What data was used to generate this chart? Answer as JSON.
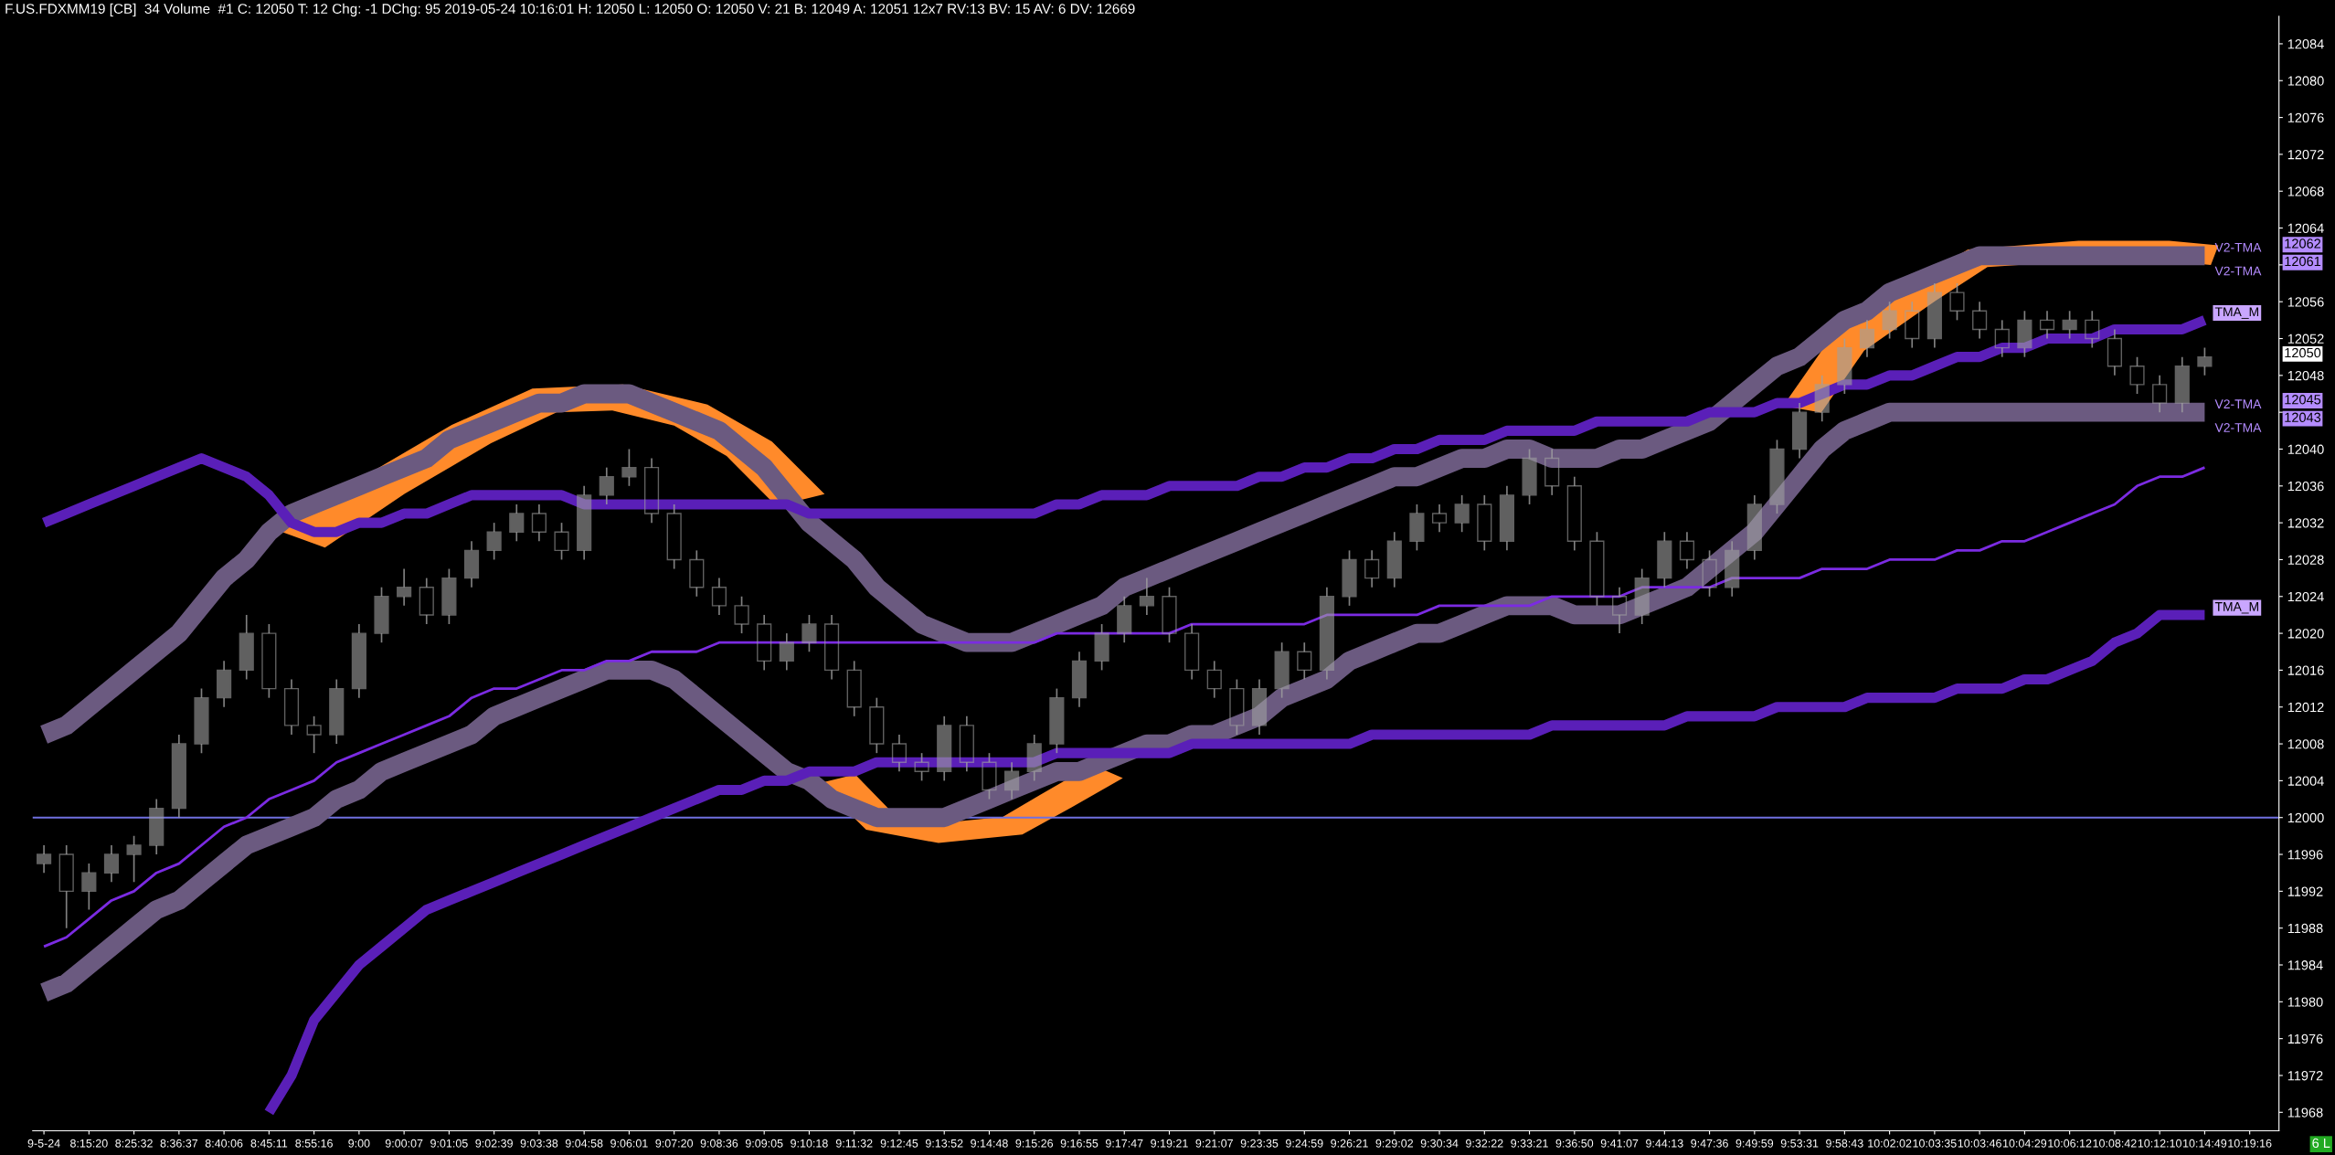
{
  "chart_data": {
    "type": "candlestick",
    "title": "F.US.FDXMM19 [CB]  34 Volume  #1 C: 12050 T: 12 Chg: -1 DChg: 95 2019-05-24 10:16:01 H: 12050 L: 12050 O: 12050 V: 21 B: 12049 A: 12051 12x7 RV:13 BV: 15 AV: 6 DV: 12669",
    "color": "#a0a0a0",
    "categories": [
      "9-5-24",
      null,
      "8:15:20",
      null,
      "8:25:32",
      null,
      "8:36:37",
      null,
      "8:40:06",
      null,
      "8:45:11",
      null,
      "8:55:16",
      null,
      "9:00",
      null,
      "9:00:07",
      null,
      "9:01:05",
      null,
      "9:02:39",
      null,
      "9:03:38",
      null,
      "9:04:58",
      null,
      "9:06:01",
      null,
      "9:07:20",
      null,
      "9:08:36",
      null,
      "9:09:05",
      null,
      "9:10:18",
      null,
      "9:11:32",
      null,
      "9:12:45",
      null,
      "9:13:52",
      null,
      "9:14:48",
      null,
      "9:15:26",
      null,
      "9:16:55",
      null,
      "9:17:47",
      null,
      "9:19:21",
      null,
      "9:21:07",
      null,
      "9:23:35",
      null,
      "9:24:59",
      null,
      "9:26:21",
      null,
      "9:29:02",
      null,
      "9:30:34",
      null,
      "9:32:22",
      null,
      "9:33:21",
      null,
      "9:36:50",
      null,
      "9:41:07",
      null,
      "9:44:13",
      null,
      "9:47:36",
      null,
      "9:49:59",
      null,
      "9:53:31",
      null,
      "9:58:43",
      null,
      "10:02:02",
      null,
      "10:03:35",
      null,
      "10:03:46",
      null,
      "10:04:29",
      null,
      "10:06:12",
      null,
      "10:08:42",
      null,
      "10:12:10",
      null,
      "10:14:49",
      null,
      "10:19:16"
    ],
    "ohlc": [
      [
        11995,
        11997,
        11994,
        11996
      ],
      [
        11996,
        11997,
        11988,
        11992
      ],
      [
        11992,
        11995,
        11990,
        11994
      ],
      [
        11994,
        11997,
        11993,
        11996
      ],
      [
        11996,
        11998,
        11993,
        11997
      ],
      [
        11997,
        12002,
        11996,
        12001
      ],
      [
        12001,
        12009,
        12000,
        12008
      ],
      [
        12008,
        12014,
        12007,
        12013
      ],
      [
        12013,
        12017,
        12012,
        12016
      ],
      [
        12016,
        12022,
        12015,
        12020
      ],
      [
        12020,
        12021,
        12013,
        12014
      ],
      [
        12014,
        12015,
        12009,
        12010
      ],
      [
        12010,
        12011,
        12007,
        12009
      ],
      [
        12009,
        12015,
        12008,
        12014
      ],
      [
        12014,
        12021,
        12013,
        12020
      ],
      [
        12020,
        12025,
        12019,
        12024
      ],
      [
        12024,
        12027,
        12023,
        12025
      ],
      [
        12025,
        12026,
        12021,
        12022
      ],
      [
        12022,
        12027,
        12021,
        12026
      ],
      [
        12026,
        12030,
        12025,
        12029
      ],
      [
        12029,
        12032,
        12028,
        12031
      ],
      [
        12031,
        12034,
        12030,
        12033
      ],
      [
        12033,
        12034,
        12030,
        12031
      ],
      [
        12031,
        12032,
        12028,
        12029
      ],
      [
        12029,
        12036,
        12028,
        12035
      ],
      [
        12035,
        12038,
        12034,
        12037
      ],
      [
        12037,
        12040,
        12036,
        12038
      ],
      [
        12038,
        12039,
        12032,
        12033
      ],
      [
        12033,
        12034,
        12027,
        12028
      ],
      [
        12028,
        12029,
        12024,
        12025
      ],
      [
        12025,
        12026,
        12022,
        12023
      ],
      [
        12023,
        12024,
        12020,
        12021
      ],
      [
        12021,
        12022,
        12016,
        12017
      ],
      [
        12017,
        12020,
        12016,
        12019
      ],
      [
        12019,
        12022,
        12018,
        12021
      ],
      [
        12021,
        12022,
        12015,
        12016
      ],
      [
        12016,
        12017,
        12011,
        12012
      ],
      [
        12012,
        12013,
        12007,
        12008
      ],
      [
        12008,
        12009,
        12005,
        12006
      ],
      [
        12006,
        12007,
        12004,
        12005
      ],
      [
        12005,
        12011,
        12004,
        12010
      ],
      [
        12010,
        12011,
        12005,
        12006
      ],
      [
        12006,
        12007,
        12002,
        12003
      ],
      [
        12003,
        12006,
        12002,
        12005
      ],
      [
        12005,
        12009,
        12004,
        12008
      ],
      [
        12008,
        12014,
        12007,
        12013
      ],
      [
        12013,
        12018,
        12012,
        12017
      ],
      [
        12017,
        12021,
        12016,
        12020
      ],
      [
        12020,
        12024,
        12019,
        12023
      ],
      [
        12023,
        12026,
        12022,
        12024
      ],
      [
        12024,
        12025,
        12019,
        12020
      ],
      [
        12020,
        12021,
        12015,
        12016
      ],
      [
        12016,
        12017,
        12013,
        12014
      ],
      [
        12014,
        12015,
        12009,
        12010
      ],
      [
        12010,
        12015,
        12009,
        12014
      ],
      [
        12014,
        12019,
        12013,
        12018
      ],
      [
        12018,
        12019,
        12015,
        12016
      ],
      [
        12016,
        12025,
        12015,
        12024
      ],
      [
        12024,
        12029,
        12023,
        12028
      ],
      [
        12028,
        12029,
        12025,
        12026
      ],
      [
        12026,
        12031,
        12025,
        12030
      ],
      [
        12030,
        12034,
        12029,
        12033
      ],
      [
        12033,
        12034,
        12031,
        12032
      ],
      [
        12032,
        12035,
        12031,
        12034
      ],
      [
        12034,
        12035,
        12029,
        12030
      ],
      [
        12030,
        12036,
        12029,
        12035
      ],
      [
        12035,
        12040,
        12034,
        12039
      ],
      [
        12039,
        12040,
        12035,
        12036
      ],
      [
        12036,
        12037,
        12029,
        12030
      ],
      [
        12030,
        12031,
        12023,
        12024
      ],
      [
        12024,
        12025,
        12020,
        12022
      ],
      [
        12022,
        12027,
        12021,
        12026
      ],
      [
        12026,
        12031,
        12025,
        12030
      ],
      [
        12030,
        12031,
        12027,
        12028
      ],
      [
        12028,
        12029,
        12024,
        12025
      ],
      [
        12025,
        12030,
        12024,
        12029
      ],
      [
        12029,
        12035,
        12028,
        12034
      ],
      [
        12034,
        12041,
        12033,
        12040
      ],
      [
        12040,
        12045,
        12039,
        12044
      ],
      [
        12044,
        12048,
        12043,
        12047
      ],
      [
        12047,
        12052,
        12046,
        12051
      ],
      [
        12051,
        12054,
        12050,
        12053
      ],
      [
        12053,
        12056,
        12052,
        12055
      ],
      [
        12055,
        12056,
        12051,
        12052
      ],
      [
        12052,
        12058,
        12051,
        12057
      ],
      [
        12057,
        12058,
        12054,
        12055
      ],
      [
        12055,
        12056,
        12052,
        12053
      ],
      [
        12053,
        12054,
        12050,
        12051
      ],
      [
        12051,
        12055,
        12050,
        12054
      ],
      [
        12054,
        12055,
        12052,
        12053
      ],
      [
        12053,
        12055,
        12052,
        12054
      ],
      [
        12054,
        12055,
        12051,
        12052
      ],
      [
        12052,
        12053,
        12048,
        12049
      ],
      [
        12049,
        12050,
        12046,
        12047
      ],
      [
        12047,
        12048,
        12044,
        12045
      ],
      [
        12045,
        12050,
        12044,
        12049
      ],
      [
        12049,
        12051,
        12048,
        12050
      ],
      null,
      null
    ],
    "series": [
      {
        "name": "V2-TMA",
        "type": "line",
        "color": "#6b5a80",
        "values": [
          12009,
          12010,
          12012,
          12014,
          12016,
          12018,
          12020,
          12023,
          12026,
          12028,
          12031,
          12033,
          12034,
          12035,
          12036,
          12037,
          12038,
          12039,
          12041,
          12042,
          12043,
          12044,
          12045,
          12045,
          12046,
          12046,
          12046,
          12045,
          12044,
          12043,
          12042,
          12040,
          12038,
          12035,
          12032,
          12030,
          12028,
          12025,
          12023,
          12021,
          12020,
          12019,
          12019,
          12019,
          12020,
          12021,
          12022,
          12023,
          12025,
          12026,
          12027,
          12028,
          12029,
          12030,
          12031,
          12032,
          12033,
          12034,
          12035,
          12036,
          12037,
          12037,
          12038,
          12039,
          12039,
          12040,
          12040,
          12039,
          12039,
          12039,
          12040,
          12040,
          12041,
          12042,
          12043,
          12045,
          12047,
          12049,
          12050,
          12052,
          12054,
          12055,
          12057,
          12058,
          12059,
          12060,
          12061,
          12061,
          12061,
          12061,
          12061,
          12061,
          12061,
          12061,
          12061,
          12061,
          12061,
          null,
          null
        ]
      },
      {
        "name": "V2-TMA",
        "type": "line",
        "color": "#6b5a80",
        "values": [
          11981,
          11982,
          11984,
          11986,
          11988,
          11990,
          11991,
          11993,
          11995,
          11997,
          11998,
          11999,
          12000,
          12002,
          12003,
          12005,
          12006,
          12007,
          12008,
          12009,
          12011,
          12012,
          12013,
          12014,
          12015,
          12016,
          12016,
          12016,
          12015,
          12013,
          12011,
          12009,
          12007,
          12005,
          12004,
          12002,
          12001,
          12000,
          12000,
          12000,
          12000,
          12001,
          12002,
          12003,
          12004,
          12005,
          12005,
          12006,
          12007,
          12008,
          12008,
          12009,
          12009,
          12010,
          12011,
          12013,
          12014,
          12015,
          12017,
          12018,
          12019,
          12020,
          12020,
          12021,
          12022,
          12023,
          12023,
          12023,
          12022,
          12022,
          12022,
          12023,
          12024,
          12025,
          12027,
          12029,
          12031,
          12034,
          12037,
          12040,
          12042,
          12043,
          12044,
          12044,
          12044,
          12044,
          12044,
          12044,
          12044,
          12044,
          12044,
          12044,
          12044,
          12044,
          12044,
          12044,
          12044,
          null,
          null
        ]
      },
      {
        "name": "TMA_M",
        "type": "line",
        "color": "#5a1fb8",
        "values": [
          12032,
          12033,
          12034,
          12035,
          12036,
          12037,
          12038,
          12039,
          12038,
          12037,
          12035,
          12032,
          12031,
          12031,
          12032,
          12032,
          12033,
          12033,
          12034,
          12035,
          12035,
          12035,
          12035,
          12035,
          12034,
          12034,
          12034,
          12034,
          12034,
          12034,
          12034,
          12034,
          12034,
          12034,
          12033,
          12033,
          12033,
          12033,
          12033,
          12033,
          12033,
          12033,
          12033,
          12033,
          12033,
          12034,
          12034,
          12035,
          12035,
          12035,
          12036,
          12036,
          12036,
          12036,
          12037,
          12037,
          12038,
          12038,
          12039,
          12039,
          12040,
          12040,
          12041,
          12041,
          12041,
          12042,
          12042,
          12042,
          12042,
          12043,
          12043,
          12043,
          12043,
          12043,
          12044,
          12044,
          12044,
          12045,
          12045,
          12046,
          12047,
          12047,
          12048,
          12048,
          12049,
          12050,
          12050,
          12051,
          12051,
          12052,
          12052,
          12052,
          12053,
          12053,
          12053,
          12053,
          12054,
          null,
          null
        ]
      },
      {
        "name": "TMA_M",
        "type": "line",
        "color": "#5a1fb8",
        "values": [
          null,
          null,
          null,
          null,
          null,
          null,
          null,
          null,
          null,
          null,
          11968,
          11972,
          11978,
          11981,
          11984,
          11986,
          11988,
          11990,
          11991,
          11992,
          11993,
          11994,
          11995,
          11996,
          11997,
          11998,
          11999,
          12000,
          12001,
          12002,
          12003,
          12003,
          12004,
          12004,
          12005,
          12005,
          12005,
          12006,
          12006,
          12006,
          12006,
          12006,
          12006,
          12006,
          12006,
          12007,
          12007,
          12007,
          12007,
          12007,
          12007,
          12008,
          12008,
          12008,
          12008,
          12008,
          12008,
          12008,
          12008,
          12009,
          12009,
          12009,
          12009,
          12009,
          12009,
          12009,
          12009,
          12010,
          12010,
          12010,
          12010,
          12010,
          12010,
          12011,
          12011,
          12011,
          12011,
          12012,
          12012,
          12012,
          12012,
          12013,
          12013,
          12013,
          12013,
          12014,
          12014,
          12014,
          12015,
          12015,
          12016,
          12017,
          12019,
          12020,
          12022,
          12022,
          12022,
          null,
          null
        ]
      },
      {
        "type": "line",
        "color": "#7b2be2",
        "values": [
          11986,
          11987,
          11989,
          11991,
          11992,
          11994,
          11995,
          11997,
          11999,
          12000,
          12002,
          12003,
          12004,
          12006,
          12007,
          12008,
          12009,
          12010,
          12011,
          12013,
          12014,
          12014,
          12015,
          12016,
          12016,
          12017,
          12017,
          12018,
          12018,
          12018,
          12019,
          12019,
          12019,
          12019,
          12019,
          12019,
          12019,
          12019,
          12019,
          12019,
          12019,
          12019,
          12019,
          12019,
          12019,
          12020,
          12020,
          12020,
          12020,
          12020,
          12020,
          12021,
          12021,
          12021,
          12021,
          12021,
          12021,
          12022,
          12022,
          12022,
          12022,
          12022,
          12023,
          12023,
          12023,
          12023,
          12023,
          12024,
          12024,
          12024,
          12024,
          12025,
          12025,
          12025,
          12025,
          12026,
          12026,
          12026,
          12026,
          12027,
          12027,
          12027,
          12028,
          12028,
          12028,
          12029,
          12029,
          12030,
          12030,
          12031,
          12032,
          12033,
          12034,
          12036,
          12037,
          12037,
          12038,
          null,
          null
        ]
      }
    ],
    "ref_lines": [
      {
        "axis": "y",
        "value": 12000,
        "color": "#7070e0"
      }
    ],
    "annotations": [
      {
        "text": "V2-TMA",
        "x": "10:14:49",
        "y": 12060
      },
      {
        "text": "V2-TMA",
        "x": "10:14:49",
        "y": 12043
      },
      "12062",
      "12061",
      "12050",
      "12045",
      "12043",
      "6 L"
    ],
    "ylim": [
      11966,
      12087
    ],
    "yticks": [
      11968,
      11972,
      11976,
      11980,
      11984,
      11988,
      11992,
      11996,
      12000,
      12004,
      12008,
      12012,
      12016,
      12020,
      12024,
      12028,
      12032,
      12036,
      12040,
      {
        "value": 12044,
        "label": null
      },
      12048,
      12052,
      12056,
      {
        "value": 12060,
        "label": null
      },
      12064,
      12068,
      12072,
      12076,
      12080,
      12084
    ],
    "grid": false,
    "legend": false
  }
}
